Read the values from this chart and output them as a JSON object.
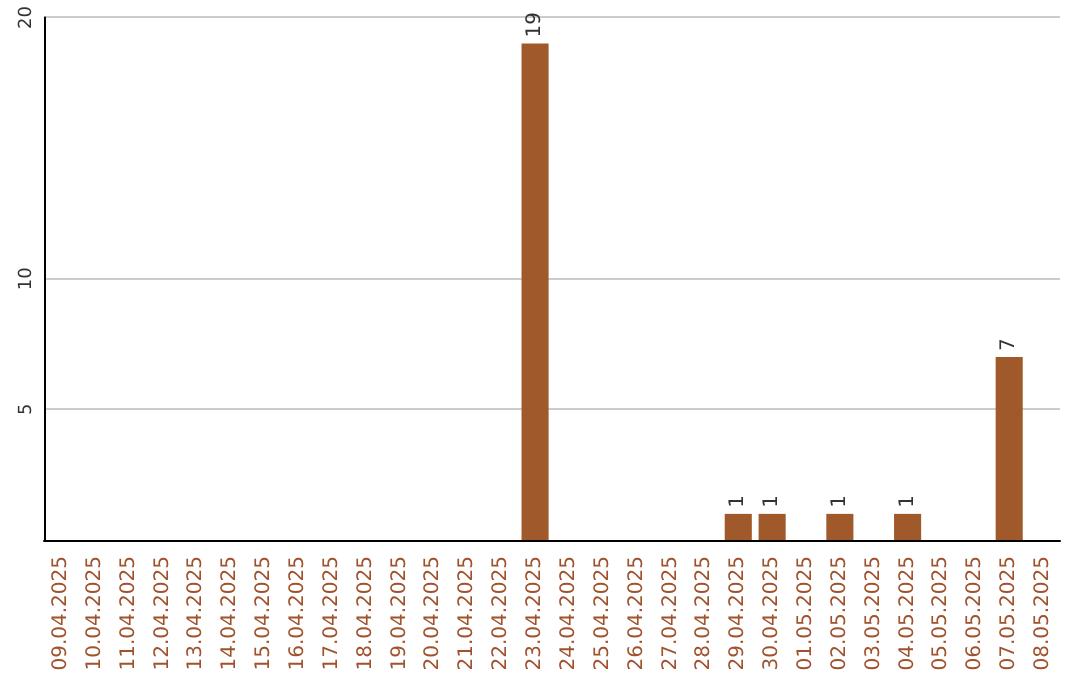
{
  "chart_data": {
    "type": "bar",
    "categories": [
      "09.04.2025",
      "10.04.2025",
      "11.04.2025",
      "12.04.2025",
      "13.04.2025",
      "14.04.2025",
      "15.04.2025",
      "16.04.2025",
      "17.04.2025",
      "18.04.2025",
      "19.04.2025",
      "20.04.2025",
      "21.04.2025",
      "22.04.2025",
      "23.04.2025",
      "24.04.2025",
      "25.04.2025",
      "26.04.2025",
      "27.04.2025",
      "28.04.2025",
      "29.04.2025",
      "30.04.2025",
      "01.05.2025",
      "02.05.2025",
      "03.05.2025",
      "04.05.2025",
      "05.05.2025",
      "06.05.2025",
      "07.05.2025",
      "08.05.2025"
    ],
    "values": [
      0,
      0,
      0,
      0,
      0,
      0,
      0,
      0,
      0,
      0,
      0,
      0,
      0,
      0,
      19,
      0,
      0,
      0,
      0,
      0,
      1,
      1,
      0,
      1,
      0,
      1,
      0,
      0,
      7,
      0
    ],
    "value_labels": [
      null,
      null,
      null,
      null,
      null,
      null,
      null,
      null,
      null,
      null,
      null,
      null,
      null,
      null,
      "19",
      null,
      null,
      null,
      null,
      null,
      "1",
      "1",
      null,
      "1",
      null,
      "1",
      null,
      null,
      "7",
      null
    ],
    "color": "#a0592a",
    "ylim": [
      0,
      20
    ],
    "yticks": [
      5,
      10,
      20
    ],
    "grid": "y"
  }
}
